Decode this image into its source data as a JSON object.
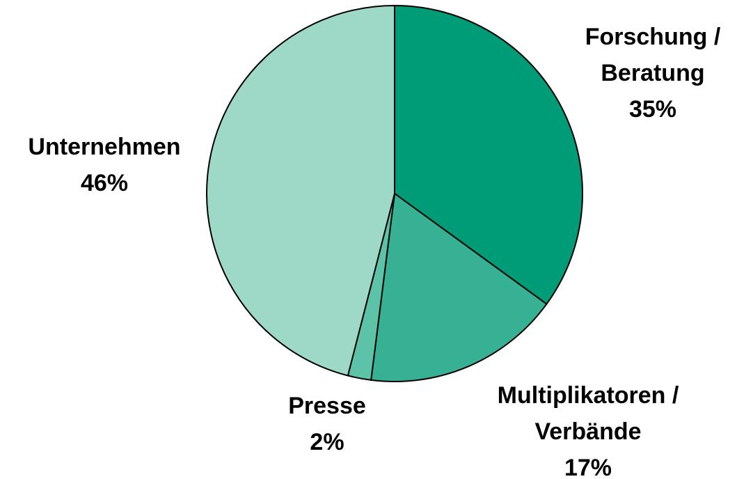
{
  "chart_data": {
    "type": "pie",
    "categories": [
      [
        "Forschung /",
        "Beratung"
      ],
      [
        "Multiplikatoren /",
        "Verbände"
      ],
      [
        "Presse"
      ],
      [
        "Unternehmen"
      ]
    ],
    "values": [
      35,
      17,
      2,
      46
    ],
    "value_labels": [
      "35%",
      "17%",
      "2%",
      "46%"
    ],
    "colors": [
      "#009b77",
      "#36b194",
      "#5cc2a8",
      "#9ed9c8"
    ]
  }
}
